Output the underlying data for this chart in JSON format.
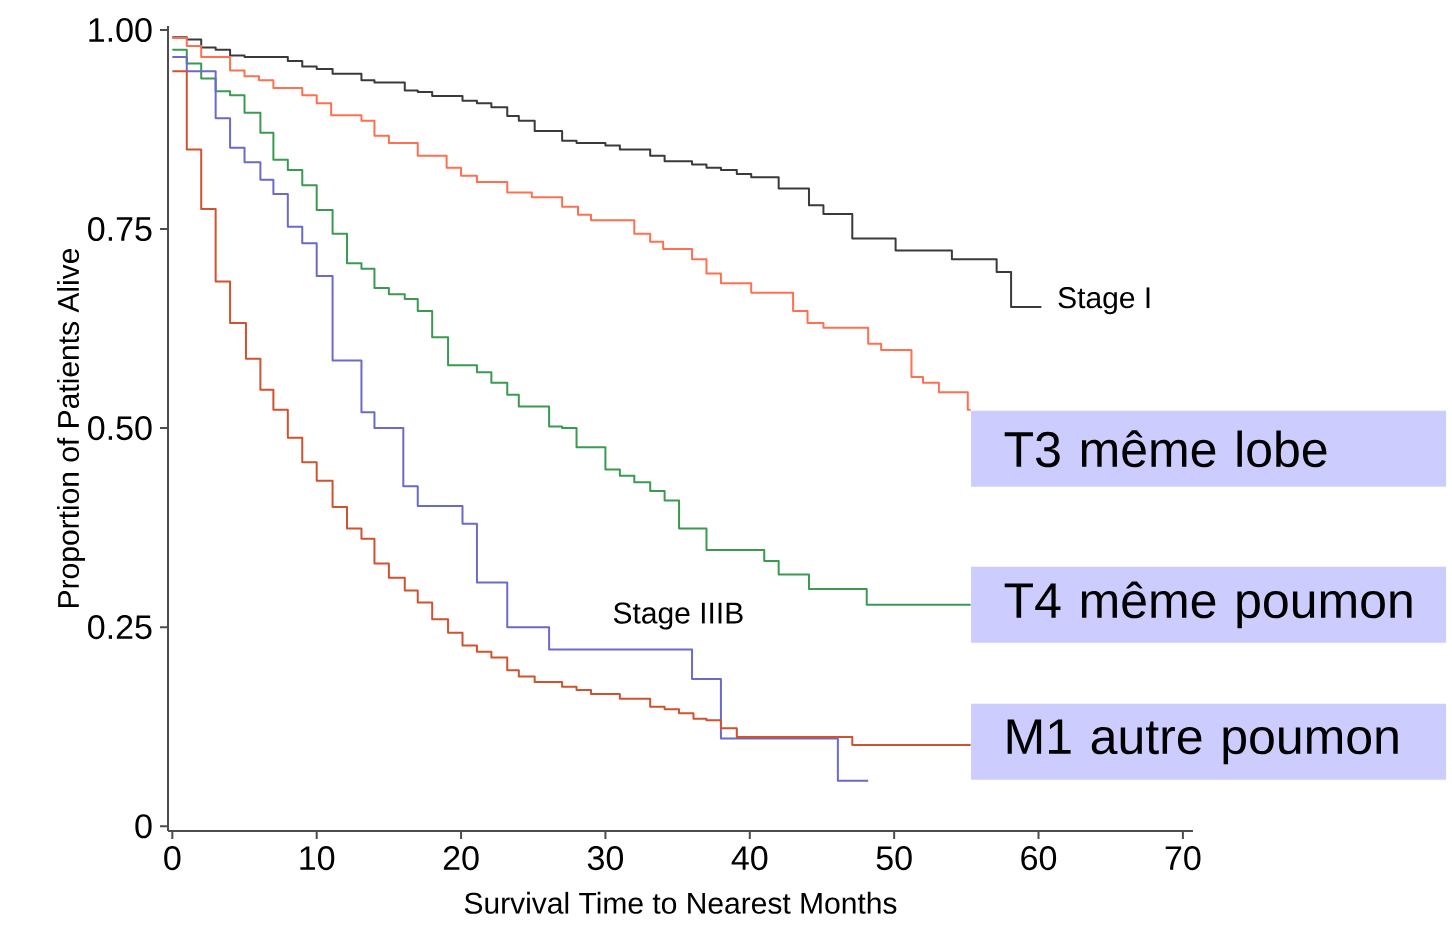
{
  "chart_data": {
    "type": "step",
    "xlabel": "Survival Time to Nearest Months",
    "ylabel": "Proportion of Patients Alive",
    "xlim": [
      -0.3,
      70.7
    ],
    "ylim": [
      -0.006,
      1.005
    ],
    "xticks": [
      0,
      10,
      20,
      30,
      40,
      50,
      60,
      70
    ],
    "yticks": [
      0,
      0.25,
      {
        "value": 0.5,
        "label": "0.50"
      },
      {
        "value": 0.75,
        "label": "0.75"
      },
      {
        "value": 1,
        "label": "1.00"
      }
    ],
    "series": [
      {
        "name": "Stage I",
        "color": "#3a3a3a",
        "x": [
          0,
          1,
          2,
          3,
          4,
          5,
          8,
          9,
          10,
          11.1,
          13.1,
          14,
          16.1,
          17,
          18,
          20.1,
          21.1,
          22.1,
          23.2,
          24,
          25.1,
          27,
          28,
          30,
          31,
          33.1,
          34.1,
          36,
          37,
          38,
          39.1,
          40.1,
          42,
          44.1,
          45.1,
          47.1,
          50.1,
          54,
          57.1,
          58.1,
          60.2
        ],
        "values": [
          0.991,
          0.988,
          0.978,
          0.975,
          0.968,
          0.966,
          0.961,
          0.954,
          0.951,
          0.945,
          0.937,
          0.934,
          0.924,
          0.922,
          0.917,
          0.911,
          0.908,
          0.903,
          0.892,
          0.886,
          0.873,
          0.861,
          0.858,
          0.855,
          0.85,
          0.842,
          0.835,
          0.831,
          0.827,
          0.824,
          0.819,
          0.815,
          0.801,
          0.78,
          0.769,
          0.738,
          0.723,
          0.712,
          0.696,
          0.652,
          0.652
        ]
      },
      {
        "name": "T3 même lobe",
        "color": "#ff7050",
        "x": [
          0,
          1,
          2,
          4,
          5,
          6,
          7,
          9,
          10,
          11,
          13.1,
          14,
          15,
          17,
          19,
          20,
          21.1,
          23.2,
          24.9,
          27,
          28.1,
          29,
          32,
          33.1,
          34,
          36,
          37,
          38,
          40.1,
          43,
          44,
          45.1,
          48.2,
          49.1,
          51.2,
          52,
          53.1,
          55.1,
          55.3
        ],
        "values": [
          0.99,
          0.98,
          0.966,
          0.949,
          0.942,
          0.937,
          0.927,
          0.918,
          0.908,
          0.893,
          0.886,
          0.867,
          0.858,
          0.842,
          0.827,
          0.817,
          0.809,
          0.796,
          0.79,
          0.778,
          0.768,
          0.761,
          0.744,
          0.734,
          0.725,
          0.712,
          0.694,
          0.682,
          0.67,
          0.647,
          0.632,
          0.626,
          0.606,
          0.598,
          0.564,
          0.557,
          0.545,
          0.523,
          0.523
        ]
      },
      {
        "name": "T4 même poumon",
        "color": "#3a9a50",
        "x": [
          0,
          1,
          2,
          3,
          4,
          5,
          6.1,
          7,
          8,
          9,
          10,
          11.1,
          12.1,
          13.1,
          14,
          15,
          16.1,
          17,
          18,
          19.1,
          21.1,
          22.1,
          23.2,
          24,
          26.1,
          27,
          28,
          30,
          31,
          32,
          33.1,
          34.1,
          35.1,
          37,
          41,
          42,
          44.1,
          48.1,
          55.3
        ],
        "values": [
          0.975,
          0.958,
          0.939,
          0.923,
          0.918,
          0.896,
          0.871,
          0.837,
          0.824,
          0.805,
          0.774,
          0.744,
          0.707,
          0.7,
          0.676,
          0.668,
          0.662,
          0.647,
          0.614,
          0.579,
          0.57,
          0.557,
          0.542,
          0.527,
          0.502,
          0.5,
          0.476,
          0.448,
          0.44,
          0.432,
          0.421,
          0.409,
          0.374,
          0.347,
          0.333,
          0.316,
          0.298,
          0.278,
          0.278
        ]
      },
      {
        "name": "Stage IIIB",
        "color": "#6a6acc",
        "x": [
          0,
          1,
          3,
          4,
          5,
          6.1,
          7,
          8,
          9,
          10,
          11.1,
          13.1,
          14,
          16,
          17,
          20.1,
          21.1,
          23.2,
          26.1,
          36,
          38,
          46.1,
          48.2
        ],
        "values": [
          0.966,
          0.948,
          0.889,
          0.852,
          0.834,
          0.812,
          0.794,
          0.753,
          0.732,
          0.691,
          0.585,
          0.52,
          0.5,
          0.427,
          0.402,
          0.38,
          0.306,
          0.25,
          0.222,
          0.185,
          0.11,
          0.057,
          0.057
        ]
      },
      {
        "name": "M1 autre poumon",
        "color": "#d0522e",
        "x": [
          0,
          1,
          2,
          3,
          4,
          5.1,
          6.1,
          7,
          8,
          9,
          10,
          11.1,
          12.1,
          13.1,
          14,
          15,
          16.1,
          17,
          18,
          19.1,
          20.1,
          21.1,
          22.1,
          23.2,
          24,
          25.1,
          27,
          28,
          29,
          31,
          33.1,
          34.1,
          35.1,
          36.1,
          37,
          38,
          39.1,
          47.1,
          55.3
        ],
        "values": [
          0.948,
          0.85,
          0.775,
          0.684,
          0.632,
          0.587,
          0.548,
          0.523,
          0.488,
          0.457,
          0.434,
          0.401,
          0.374,
          0.361,
          0.33,
          0.312,
          0.296,
          0.281,
          0.26,
          0.243,
          0.227,
          0.219,
          0.212,
          0.196,
          0.188,
          0.181,
          0.175,
          0.171,
          0.166,
          0.16,
          0.15,
          0.147,
          0.142,
          0.135,
          0.133,
          0.123,
          0.112,
          0.102,
          0.102
        ]
      }
    ]
  }
}
